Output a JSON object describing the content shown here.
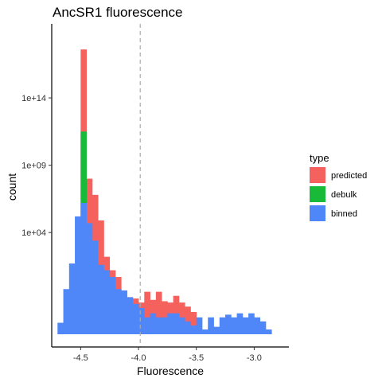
{
  "chart_data": {
    "type": "bar",
    "stacked": true,
    "title": "AncSR1 fluorescence",
    "xlabel": "Fluorescence",
    "ylabel": "count",
    "x_ticks": [
      "-4.5",
      "-4.0",
      "-3.5",
      "-3.0"
    ],
    "x_tick_values": [
      -4.5,
      -4.0,
      -3.5,
      -3.0
    ],
    "y_ticks": [
      "1e+04",
      "1e+09",
      "1e+14"
    ],
    "y_tick_values": [
      4,
      9,
      14
    ],
    "y_scale": "log10",
    "xlim": [
      -4.75,
      -2.7
    ],
    "ylim_log10": [
      -4.5,
      19.5
    ],
    "reference_line_x": -3.985,
    "bin_width": 0.05,
    "bin_centers": [
      -4.675,
      -4.625,
      -4.575,
      -4.525,
      -4.475,
      -4.425,
      -4.375,
      -4.325,
      -4.275,
      -4.225,
      -4.175,
      -4.125,
      -4.075,
      -4.025,
      -3.975,
      -3.925,
      -3.875,
      -3.825,
      -3.775,
      -3.725,
      -3.675,
      -3.625,
      -3.575,
      -3.525,
      -3.475,
      -3.425,
      -3.375,
      -3.325,
      -3.275,
      -3.225,
      -3.175,
      -3.125,
      -3.075,
      -3.025,
      -2.975,
      -2.925,
      -2.875,
      -2.825,
      -2.775
    ],
    "legend": {
      "title": "type",
      "position": "right"
    },
    "series": [
      {
        "name": "binned",
        "color": "#5087f8",
        "log10_top": [
          -2.7,
          -0.2,
          1.7,
          5.2,
          6.2,
          4.7,
          3.4,
          1.6,
          1.2,
          0.7,
          -0.2,
          -0.3,
          -0.8,
          -1.3,
          -1.6,
          -2.3,
          -2.0,
          -2.3,
          -2.3,
          -2.0,
          -2.0,
          -2.3,
          -2.6,
          -2.9,
          -2.3,
          -3.2,
          -2.3,
          -3.0,
          -2.3,
          -2.1,
          -2.3,
          -2.0,
          -2.3,
          -2.0,
          -2.3,
          -2.6,
          -3.2,
          -3.6,
          -3.6
        ]
      },
      {
        "name": "debulk",
        "color": "#19b93a",
        "log10_top": [
          null,
          null,
          null,
          null,
          11.5,
          null,
          null,
          null,
          null,
          null,
          null,
          null,
          null,
          null,
          null,
          null,
          null,
          null,
          null,
          null,
          null,
          null,
          null,
          null,
          null,
          null,
          null,
          null,
          null,
          null,
          null,
          null,
          null,
          null,
          null,
          null,
          null,
          null,
          null
        ]
      },
      {
        "name": "predicted",
        "color": "#f5625d",
        "log10_top": [
          null,
          null,
          null,
          null,
          17.6,
          8.0,
          6.8,
          4.9,
          2.2,
          1.2,
          0.7,
          -0.3,
          -0.8,
          -0.9,
          -1.2,
          -0.4,
          -1.0,
          -0.4,
          -1.1,
          -1.2,
          -0.7,
          -1.2,
          -1.5,
          -1.9,
          null,
          null,
          null,
          null,
          null,
          null,
          null,
          null,
          null,
          null,
          null,
          null,
          null,
          null,
          null
        ]
      }
    ]
  }
}
